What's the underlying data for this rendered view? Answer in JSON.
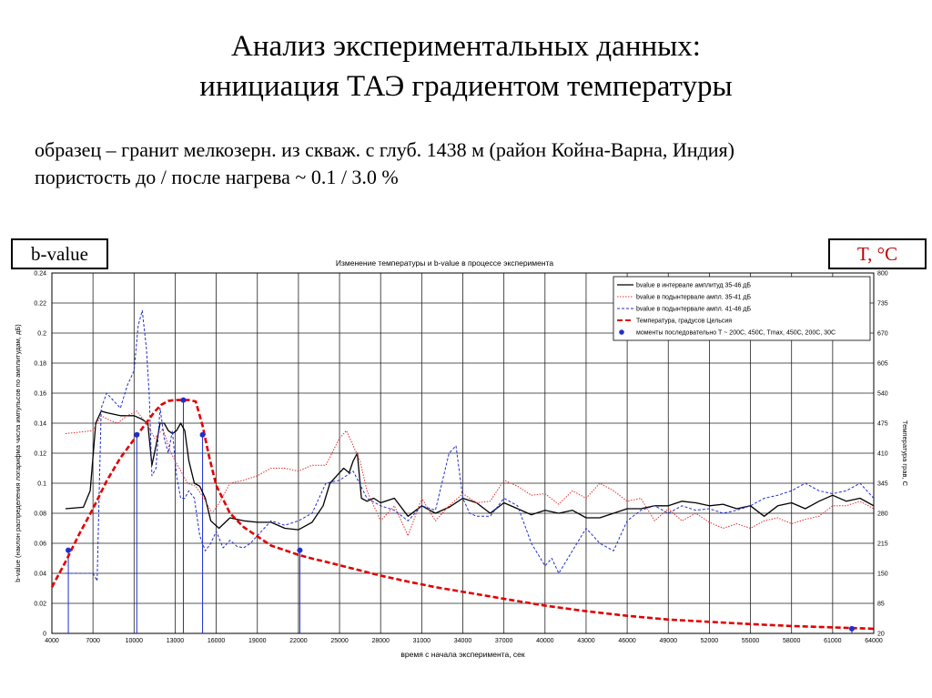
{
  "slide": {
    "title_line1": "Анализ экспериментальных данных:",
    "title_line2": "инициация ТАЭ градиентом температуры",
    "subtitle_line1": "образец – гранит мелкозерн. из скваж. с глуб. 1438 м (район Койна-Варна, Индия)",
    "subtitle_line2": "пористость до / после нагрева ~ 0.1 / 3.0 %",
    "label_left": "b-value",
    "label_right": "T, °C"
  },
  "chart_data": {
    "type": "line",
    "title": "Изменение температуры и b-value в процессе эксперимента",
    "xlabel": "время с начала эксперимента, сек",
    "ylabel": "b-value (наклон распределения логарифма числа импульсов по амплитудам, дБ)",
    "y2label": "Температура грав, С",
    "xlim": [
      4000,
      64000
    ],
    "ylim": [
      0,
      0.24
    ],
    "y2lim": [
      20,
      800
    ],
    "x_ticks": [
      4000,
      7000,
      10000,
      13000,
      16000,
      19000,
      22000,
      25000,
      28000,
      31000,
      34000,
      37000,
      40000,
      43000,
      46000,
      49000,
      52000,
      55000,
      58000,
      61000,
      64000
    ],
    "x_tick_labels": [
      "4000",
      "7000",
      "10000",
      "13000",
      "16000",
      "19000",
      "22000",
      "25000",
      "28000",
      "31000",
      "34000",
      "37000",
      "40000",
      "43000",
      "46000",
      "49000",
      "52000",
      "55000",
      "58000",
      "61000",
      "64000"
    ],
    "y_ticks": [
      0,
      0.02,
      0.04,
      0.06,
      0.08,
      0.1,
      0.12,
      0.14,
      0.16,
      0.18,
      0.2,
      0.22,
      0.24
    ],
    "y_tick_labels": [
      "0",
      "0.02",
      "0.04",
      "0.06",
      "0.08",
      "0.1",
      "0.12",
      "0.14",
      "0.16",
      "0.18",
      "0.2",
      "0.22",
      "0.24"
    ],
    "y2_ticks": [
      20,
      85,
      150,
      215,
      280,
      345,
      410,
      475,
      540,
      605,
      670,
      735,
      800
    ],
    "y2_tick_labels": [
      "20",
      "85",
      "150",
      "215",
      "280",
      "345",
      "410",
      "475",
      "540",
      "605",
      "670",
      "735",
      "800"
    ],
    "grid": true,
    "legend_position": "top-right",
    "colors": {
      "bvalue_main": "#000000",
      "bvalue_35_41": "#e03030",
      "bvalue_41_46": "#1f2fd0",
      "temperature": "#e00000",
      "markers": "#1f2fd0"
    },
    "series": [
      {
        "name": "bvalue в интервале амплитуд 35-46 дБ",
        "axis": "left",
        "style": "solid",
        "x": [
          5000,
          6300,
          6800,
          7200,
          7600,
          8000,
          8500,
          9000,
          9500,
          10000,
          10500,
          11000,
          11300,
          11600,
          11900,
          12200,
          12500,
          12800,
          13100,
          13400,
          13700,
          14000,
          14400,
          14800,
          15200,
          15600,
          16200,
          17000,
          18000,
          19000,
          20000,
          21000,
          22000,
          23000,
          23800,
          24300,
          24800,
          25300,
          25700,
          26000,
          26300,
          26600,
          27000,
          27500,
          28000,
          29000,
          30000,
          31000,
          32000,
          33000,
          34000,
          35000,
          36000,
          37000,
          38000,
          39000,
          40000,
          41000,
          42000,
          43000,
          44000,
          45000,
          46000,
          47000,
          48000,
          49000,
          50000,
          51000,
          52000,
          53000,
          54000,
          55000,
          56000,
          57000,
          58000,
          59000,
          60000,
          61000,
          62000,
          63000,
          64000
        ],
        "y": [
          0.083,
          0.084,
          0.095,
          0.14,
          0.148,
          0.147,
          0.146,
          0.145,
          0.145,
          0.145,
          0.143,
          0.14,
          0.112,
          0.125,
          0.14,
          0.14,
          0.135,
          0.133,
          0.135,
          0.14,
          0.135,
          0.115,
          0.1,
          0.098,
          0.09,
          0.075,
          0.07,
          0.077,
          0.075,
          0.074,
          0.074,
          0.07,
          0.069,
          0.074,
          0.085,
          0.1,
          0.105,
          0.11,
          0.107,
          0.115,
          0.12,
          0.09,
          0.088,
          0.09,
          0.087,
          0.09,
          0.078,
          0.085,
          0.08,
          0.084,
          0.09,
          0.087,
          0.08,
          0.087,
          0.083,
          0.079,
          0.082,
          0.08,
          0.082,
          0.077,
          0.077,
          0.08,
          0.083,
          0.083,
          0.085,
          0.085,
          0.088,
          0.087,
          0.085,
          0.086,
          0.083,
          0.085,
          0.078,
          0.085,
          0.087,
          0.083,
          0.088,
          0.092,
          0.088,
          0.09,
          0.085
        ]
      },
      {
        "name": "bvalue в подынтервале ампл. 35-41 дБ",
        "axis": "left",
        "style": "dotted",
        "x": [
          5000,
          6000,
          7000,
          7600,
          8200,
          8800,
          9500,
          10200,
          10900,
          11500,
          12100,
          12700,
          13300,
          13900,
          14500,
          15100,
          15700,
          16300,
          17000,
          18000,
          19000,
          20000,
          21000,
          22000,
          23000,
          24000,
          25000,
          25500,
          26000,
          26500,
          27000,
          28000,
          29000,
          30000,
          31000,
          32000,
          33000,
          34000,
          35000,
          36000,
          37000,
          38000,
          39000,
          40000,
          41000,
          42000,
          43000,
          44000,
          45000,
          46000,
          47000,
          48000,
          49000,
          50000,
          51000,
          52000,
          53000,
          54000,
          55000,
          56000,
          57000,
          58000,
          59000,
          60000,
          61000,
          62000,
          63000,
          64000
        ],
        "y": [
          0.133,
          0.134,
          0.135,
          0.145,
          0.142,
          0.14,
          0.145,
          0.148,
          0.14,
          0.13,
          0.136,
          0.12,
          0.11,
          0.1,
          0.098,
          0.09,
          0.08,
          0.088,
          0.1,
          0.102,
          0.105,
          0.11,
          0.11,
          0.108,
          0.112,
          0.112,
          0.13,
          0.135,
          0.125,
          0.115,
          0.095,
          0.075,
          0.085,
          0.065,
          0.09,
          0.075,
          0.085,
          0.093,
          0.087,
          0.088,
          0.102,
          0.098,
          0.092,
          0.093,
          0.086,
          0.095,
          0.09,
          0.1,
          0.095,
          0.088,
          0.09,
          0.075,
          0.083,
          0.075,
          0.08,
          0.074,
          0.07,
          0.073,
          0.07,
          0.075,
          0.077,
          0.073,
          0.076,
          0.078,
          0.085,
          0.085,
          0.088,
          0.083
        ]
      },
      {
        "name": "bvalue в подынтервале ампл. 41-46 дБ",
        "axis": "left",
        "style": "dashed",
        "x": [
          5000,
          6000,
          7000,
          7300,
          7600,
          8000,
          8500,
          9000,
          9500,
          10000,
          10300,
          10600,
          10900,
          11100,
          11300,
          11600,
          11900,
          12200,
          12500,
          12800,
          13100,
          13400,
          13700,
          14000,
          14400,
          14800,
          15200,
          15600,
          16000,
          16500,
          17000,
          17500,
          18000,
          18500,
          19000,
          20000,
          21000,
          22000,
          23000,
          24000,
          25000,
          26000,
          27000,
          28000,
          29000,
          30000,
          31000,
          32000,
          33000,
          33500,
          34000,
          34500,
          35000,
          36000,
          37000,
          38000,
          39000,
          40000,
          40500,
          41000,
          42000,
          43000,
          44000,
          45000,
          46000,
          47000,
          48000,
          49000,
          50000,
          51000,
          52000,
          53000,
          54000,
          55000,
          56000,
          57000,
          58000,
          59000,
          60000,
          61000,
          62000,
          63000,
          64000
        ],
        "y": [
          0.04,
          0.04,
          0.04,
          0.035,
          0.15,
          0.16,
          0.155,
          0.15,
          0.165,
          0.175,
          0.205,
          0.215,
          0.19,
          0.16,
          0.105,
          0.11,
          0.15,
          0.13,
          0.12,
          0.135,
          0.105,
          0.09,
          0.09,
          0.095,
          0.09,
          0.065,
          0.055,
          0.06,
          0.068,
          0.057,
          0.062,
          0.058,
          0.057,
          0.06,
          0.065,
          0.075,
          0.072,
          0.075,
          0.08,
          0.1,
          0.102,
          0.108,
          0.09,
          0.085,
          0.082,
          0.075,
          0.085,
          0.082,
          0.12,
          0.125,
          0.09,
          0.08,
          0.078,
          0.078,
          0.09,
          0.085,
          0.06,
          0.045,
          0.05,
          0.04,
          0.055,
          0.07,
          0.06,
          0.055,
          0.075,
          0.082,
          0.085,
          0.08,
          0.085,
          0.082,
          0.083,
          0.08,
          0.082,
          0.085,
          0.09,
          0.092,
          0.095,
          0.1,
          0.095,
          0.093,
          0.095,
          0.1,
          0.09
        ]
      },
      {
        "name": "Температура, градусов Цельсия",
        "axis": "right",
        "style": "thick-dashed",
        "x": [
          4000,
          5000,
          6000,
          7000,
          8000,
          9000,
          10000,
          10500,
          11000,
          11500,
          12000,
          12500,
          13000,
          13500,
          14000,
          14500,
          15000,
          15500,
          16000,
          17000,
          18000,
          19000,
          20000,
          21000,
          22000,
          23000,
          24000,
          26000,
          28000,
          30000,
          32000,
          34000,
          36000,
          38000,
          40000,
          43000,
          46000,
          49000,
          52000,
          55000,
          58000,
          61000,
          64000
        ],
        "y": [
          120,
          175,
          235,
          290,
          350,
          400,
          440,
          460,
          480,
          500,
          515,
          523,
          525,
          525,
          525,
          522,
          470,
          400,
          340,
          280,
          250,
          230,
          210,
          200,
          190,
          182,
          175,
          160,
          145,
          132,
          120,
          110,
          100,
          90,
          80,
          68,
          58,
          50,
          45,
          40,
          36,
          33,
          30
        ]
      },
      {
        "name": "моменты последовательно Т ~ 200С, 450С, Tmax, 450С, 200С, 30С",
        "axis": "right",
        "style": "markers",
        "x": [
          5200,
          10200,
          13600,
          15000,
          22100,
          62400
        ],
        "y": [
          200,
          450,
          525,
          450,
          200,
          30
        ]
      }
    ]
  }
}
